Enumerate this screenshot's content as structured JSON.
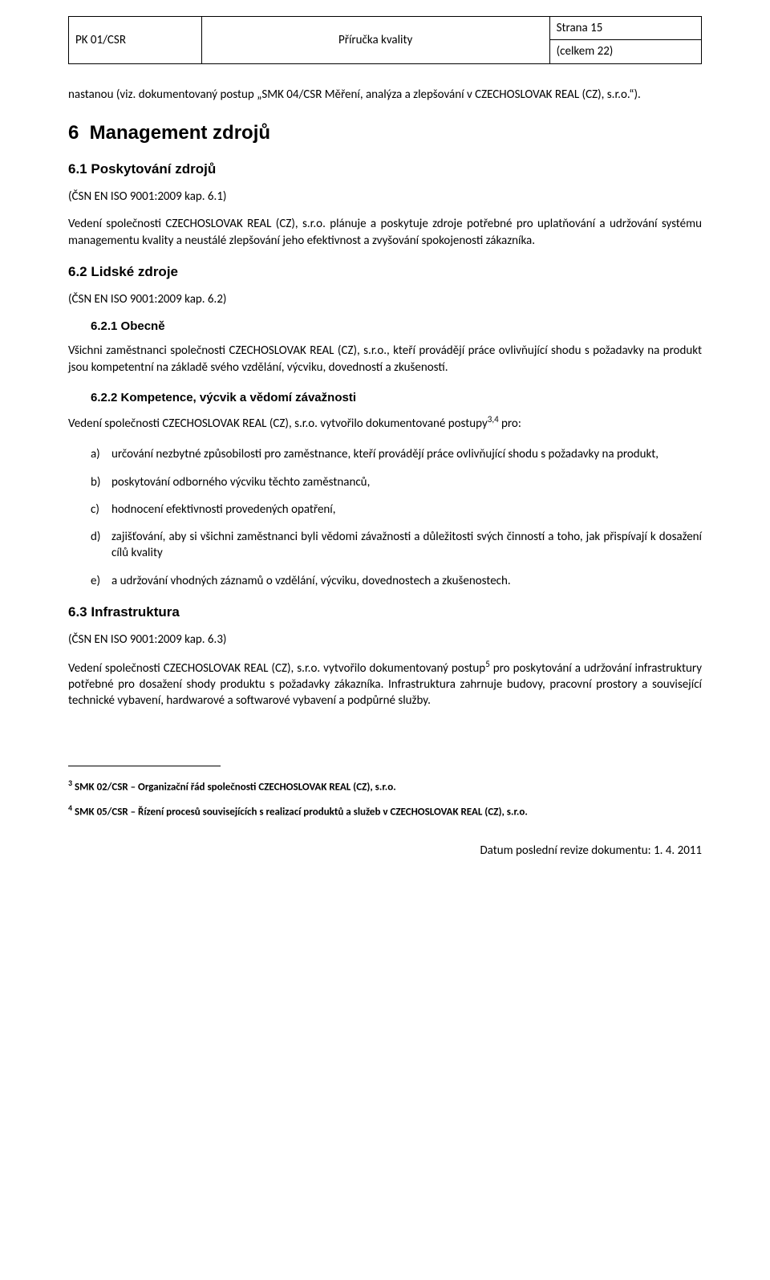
{
  "header": {
    "doc_code": "PK 01/CSR",
    "doc_title": "Příručka kvality",
    "page_label": "Strana 15",
    "total_label": "(celkem 22)"
  },
  "intro": "nastanou (viz. dokumentovaný postup „SMK 04/CSR Měření, analýza a zlepšování v CZECHOSLOVAK REAL (CZ), s.r.o.“).",
  "s6": {
    "title": "6  Management zdrojů",
    "s61": {
      "title": "6.1 Poskytování zdrojů",
      "ref": "(ČSN EN ISO 9001:2009 kap. 6.1)",
      "p": "Vedení společnosti CZECHOSLOVAK REAL (CZ), s.r.o. plánuje a poskytuje zdroje potřebné pro uplatňování a udržování systému managementu kvality a neustálé zlepšování jeho efektivnost a zvyšování spokojenosti zákazníka."
    },
    "s62": {
      "title": "6.2 Lidské zdroje",
      "ref": "(ČSN EN ISO 9001:2009 kap. 6.2)",
      "s621": {
        "title": "6.2.1 Obecně",
        "p": "Všichni zaměstnanci společnosti CZECHOSLOVAK REAL (CZ),  s.r.o., kteří provádějí práce ovlivňující shodu s požadavky na produkt jsou kompetentní na základě svého vzdělání, výcviku, dovedností a zkušeností."
      },
      "s622": {
        "title": "6.2.2 Kompetence, výcvik a vědomí závažnosti",
        "lead_a": "Vedení společnosti CZECHOSLOVAK REAL (CZ), s.r.o. vytvořilo dokumentované postupy",
        "lead_sup": "3,4",
        "lead_b": " pro:",
        "items": [
          {
            "m": "a)",
            "t": "určování nezbytné způsobilosti pro zaměstnance, kteří provádějí práce ovlivňující shodu s požadavky na produkt,"
          },
          {
            "m": "b)",
            "t": "poskytování odborného výcviku těchto zaměstnanců,"
          },
          {
            "m": "c)",
            "t": "hodnocení efektivnosti provedených opatření,"
          },
          {
            "m": "d)",
            "t": "zajišťování, aby si všichni zaměstnanci byli vědomi závažnosti a důležitosti svých činností a toho, jak přispívají k dosažení cílů kvality"
          },
          {
            "m": "e)",
            "t": "a udržování vhodných záznamů o vzdělání, výcviku, dovednostech a zkušenostech."
          }
        ]
      }
    },
    "s63": {
      "title": "6.3 Infrastruktura",
      "ref": "(ČSN EN ISO 9001:2009 kap. 6.3)",
      "p_a": "Vedení společnosti CZECHOSLOVAK REAL (CZ), s.r.o. vytvořilo dokumentovaný postup",
      "p_sup": "5",
      "p_b": " pro poskytování a udržování infrastruktury potřebné pro dosažení shody produktu s požadavky zákazníka. Infrastruktura zahrnuje budovy, pracovní prostory a související technické vybavení, hardwarové a softwarové vybavení a podpůrné služby."
    }
  },
  "footnotes": {
    "f3": {
      "n": "3",
      "t": " SMK 02/CSR – Organizační řád společnosti CZECHOSLOVAK REAL (CZ), s.r.o."
    },
    "f4": {
      "n": "4",
      "t": " SMK 05/CSR – Řízení procesů souvisejících s realizací produktů a služeb v CZECHOSLOVAK REAL (CZ), s.r.o."
    }
  },
  "footer": "Datum poslední revize dokumentu: 1. 4. 2011"
}
